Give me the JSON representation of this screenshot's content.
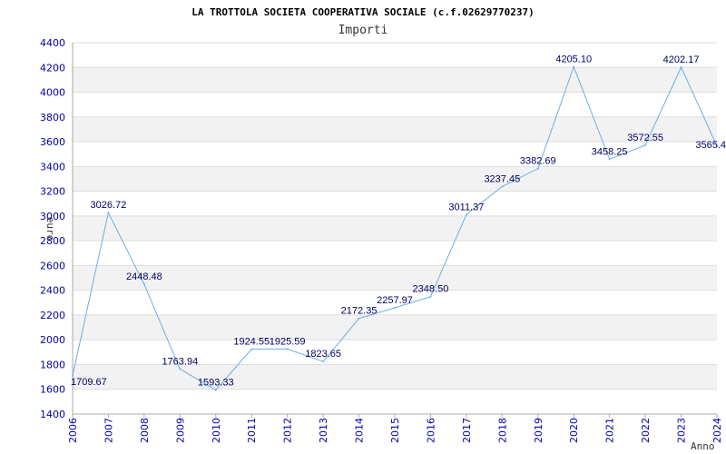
{
  "chart_data": {
    "type": "line",
    "title": "LA TROTTOLA SOCIETA COOPERATIVA SOCIALE (c.f.02629770237)",
    "subtitle": "Importi",
    "xlabel": "Anno",
    "ylabel": "euro",
    "ylim": [
      1400,
      4400
    ],
    "yticks": [
      1400,
      1600,
      1800,
      2000,
      2200,
      2400,
      2600,
      2800,
      3000,
      3200,
      3400,
      3600,
      3800,
      4000,
      4200,
      4400
    ],
    "xlim": [
      2006,
      2024
    ],
    "x": [
      2006,
      2007,
      2008,
      2009,
      2010,
      2011,
      2012,
      2013,
      2014,
      2015,
      2016,
      2017,
      2018,
      2019,
      2020,
      2021,
      2022,
      2023,
      2024
    ],
    "series": [
      {
        "values": [
          1709.67,
          3026.72,
          2448.48,
          1763.94,
          1593.33,
          1924.55,
          1925.59,
          1823.65,
          2172.35,
          2257.97,
          2348.5,
          3011.37,
          3237.45,
          3382.69,
          4205.1,
          3458.25,
          3572.55,
          4202.17,
          3565.4
        ]
      }
    ],
    "data_labels": [
      "1709.67",
      "3026.72",
      "2448.48",
      "1763.94",
      "1593.33",
      "1924.55",
      "1925.59",
      "1823.65",
      "2172.35",
      "2257.97",
      "2348.50",
      "3011.37",
      "3237.45",
      "3382.69",
      "4205.10",
      "3458.25",
      "3572.55",
      "4202.17",
      "3565.4"
    ],
    "grid": true,
    "legend": "none",
    "colors": {
      "line": "#6aaee8",
      "band": "#f2f2f2",
      "grid": "#dddddd",
      "tick": "#0000aa",
      "label": "#000066"
    }
  }
}
